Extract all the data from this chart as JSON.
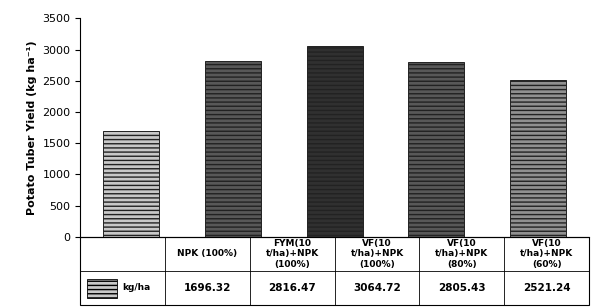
{
  "categories": [
    "NPK (100%)",
    "FYM(10\nt/ha)+NPK\n(100%)",
    "VF(10\nt/ha)+NPK\n(100%)",
    "VF(10\nt/ha)+NPK\n(80%)",
    "VF(10\nt/ha)+NPK\n(60%)"
  ],
  "values": [
    1696.32,
    2816.47,
    3064.72,
    2805.43,
    2521.24
  ],
  "bar_colors": [
    "#c8c8c8",
    "#585858",
    "#303030",
    "#585858",
    "#909090"
  ],
  "ylabel": "Potato Tuber Yield (kg ha⁻¹)",
  "ylim": [
    0,
    3500
  ],
  "yticks": [
    0,
    500,
    1000,
    1500,
    2000,
    2500,
    3000,
    3500
  ],
  "legend_label": "kg/ha",
  "legend_values": [
    "1696.32",
    "2816.47",
    "3064.72",
    "2805.43",
    "2521.24"
  ],
  "background_color": "#ffffff",
  "axis_fontsize": 8,
  "tick_fontsize": 8,
  "bar_width": 0.55
}
